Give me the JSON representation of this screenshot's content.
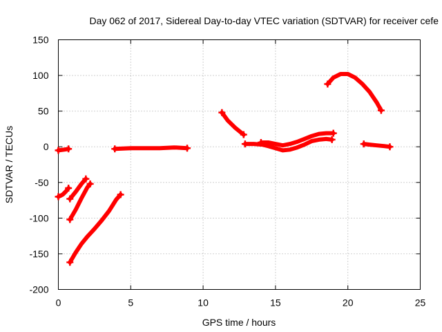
{
  "chart_data": {
    "type": "scatter",
    "title": "Day 062 of 2017, Sidereal Day-to-day VTEC variation (SDTVAR) for receiver cefe",
    "xlabel": "GPS time / hours",
    "ylabel": "SDTVAR / TECUs",
    "xlim": [
      0,
      25
    ],
    "ylim": [
      -200,
      150
    ],
    "xticks": [
      0,
      5,
      10,
      15,
      20,
      25
    ],
    "yticks": [
      -200,
      -150,
      -100,
      -50,
      0,
      50,
      100,
      150
    ],
    "grid": true,
    "legend": "none",
    "color": "#ff0000",
    "series": [
      {
        "values": [
          [
            0.0,
            -5
          ],
          [
            0.4,
            -4
          ],
          [
            0.7,
            -3
          ]
        ]
      },
      {
        "values": [
          [
            0.0,
            -70
          ],
          [
            0.3,
            -67
          ],
          [
            0.5,
            -63
          ],
          [
            0.7,
            -58
          ]
        ]
      },
      {
        "values": [
          [
            0.8,
            -73
          ],
          [
            1.2,
            -63
          ],
          [
            1.6,
            -52
          ],
          [
            1.9,
            -45
          ]
        ]
      },
      {
        "values": [
          [
            0.8,
            -102
          ],
          [
            1.2,
            -88
          ],
          [
            1.6,
            -72
          ],
          [
            2.0,
            -57
          ],
          [
            2.2,
            -52
          ]
        ]
      },
      {
        "values": [
          [
            0.8,
            -162
          ],
          [
            1.2,
            -148
          ],
          [
            1.6,
            -136
          ],
          [
            2.0,
            -126
          ],
          [
            2.5,
            -115
          ],
          [
            3.0,
            -103
          ],
          [
            3.5,
            -90
          ],
          [
            4.0,
            -74
          ],
          [
            4.3,
            -67
          ]
        ]
      },
      {
        "values": [
          [
            3.9,
            -3
          ],
          [
            5.0,
            -2
          ],
          [
            6.0,
            -2
          ],
          [
            7.0,
            -2
          ],
          [
            8.0,
            -1
          ],
          [
            8.9,
            -2
          ]
        ]
      },
      {
        "values": [
          [
            11.3,
            48
          ],
          [
            11.7,
            37
          ],
          [
            12.2,
            27
          ],
          [
            12.8,
            17
          ]
        ]
      },
      {
        "values": [
          [
            12.9,
            4
          ],
          [
            13.5,
            4
          ],
          [
            14.1,
            3
          ],
          [
            14.5,
            1
          ],
          [
            15.0,
            -2
          ],
          [
            15.5,
            -5
          ],
          [
            16.0,
            -4
          ],
          [
            16.5,
            -1
          ],
          [
            17.0,
            3
          ],
          [
            17.5,
            8
          ],
          [
            18.0,
            10
          ],
          [
            18.5,
            11
          ],
          [
            18.9,
            10
          ]
        ]
      },
      {
        "values": [
          [
            14.0,
            6
          ],
          [
            14.5,
            6
          ],
          [
            15.0,
            4
          ],
          [
            15.5,
            2
          ],
          [
            16.0,
            4
          ],
          [
            16.5,
            7
          ],
          [
            17.0,
            11
          ],
          [
            17.5,
            15
          ],
          [
            18.0,
            18
          ],
          [
            18.5,
            19
          ],
          [
            19.0,
            19
          ]
        ]
      },
      {
        "values": [
          [
            18.6,
            88
          ],
          [
            19.0,
            97
          ],
          [
            19.5,
            102
          ],
          [
            20.0,
            102
          ],
          [
            20.5,
            97
          ],
          [
            21.0,
            88
          ],
          [
            21.5,
            77
          ],
          [
            22.0,
            62
          ],
          [
            22.3,
            51
          ]
        ]
      },
      {
        "values": [
          [
            21.1,
            4
          ],
          [
            21.5,
            3
          ],
          [
            22.0,
            2
          ],
          [
            22.5,
            1
          ],
          [
            22.9,
            0
          ]
        ]
      }
    ]
  }
}
